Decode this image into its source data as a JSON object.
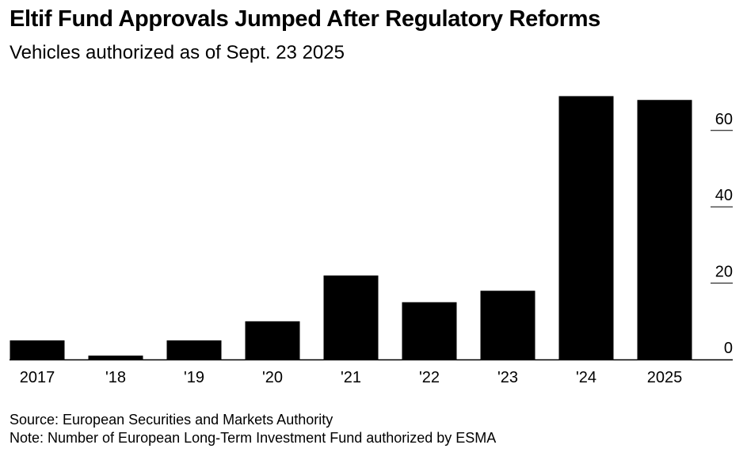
{
  "title": "Eltif Fund Approvals Jumped After Regulatory Reforms",
  "subtitle": "Vehicles authorized as of Sept. 23 2025",
  "source": "Source: European Securities and Markets Authority",
  "note": "Note: Number of European Long-Term Investment Fund authorized by ESMA",
  "chart_data": {
    "type": "bar",
    "categories": [
      "2017",
      "'18",
      "'19",
      "'20",
      "'21",
      "'22",
      "'23",
      "'24",
      "2025"
    ],
    "values": [
      5,
      1,
      5,
      10,
      22,
      15,
      18,
      69,
      68
    ],
    "yticks": [
      0,
      20,
      40,
      60
    ],
    "ylim": [
      0,
      70
    ],
    "y_axis_side": "right",
    "grid": false,
    "bar_color": "#000000"
  }
}
